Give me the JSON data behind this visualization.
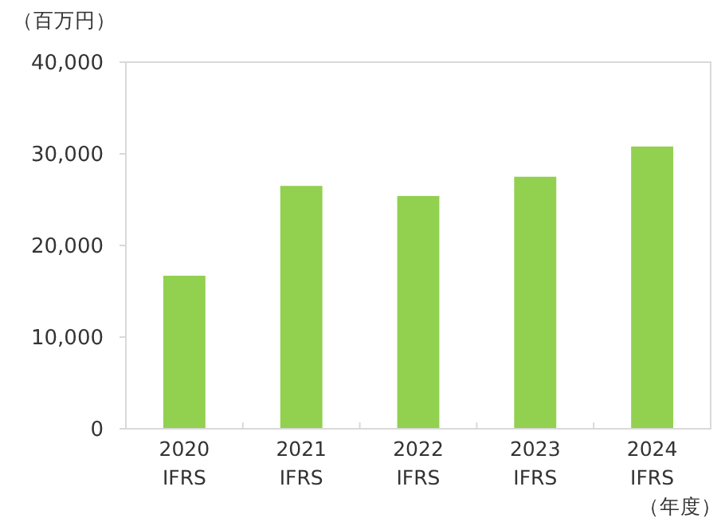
{
  "chart_data": {
    "type": "bar",
    "ylabel": "（百万円）",
    "xlabel": "（年度）",
    "categories": [
      "2020 IFRS",
      "2021 IFRS",
      "2022 IFRS",
      "2023 IFRS",
      "2024 IFRS"
    ],
    "values": [
      16700,
      26500,
      25400,
      27500,
      30800
    ],
    "color": "#92d050",
    "ylim": [
      0,
      40000
    ],
    "yticks": [
      {
        "value": 0,
        "label": "0"
      },
      {
        "value": 10000,
        "label": "10,000"
      },
      {
        "value": 20000,
        "label": "20,000"
      },
      {
        "value": 30000,
        "label": "30,000"
      },
      {
        "value": 40000,
        "label": "40,000"
      }
    ],
    "grid": false
  }
}
